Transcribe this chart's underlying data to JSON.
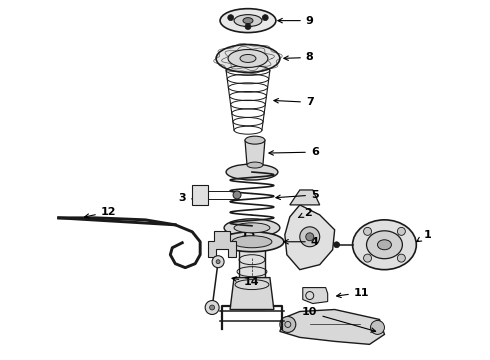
{
  "background_color": "#ffffff",
  "line_color": "#1a1a1a",
  "label_color": "#000000",
  "figsize": [
    4.9,
    3.6
  ],
  "dpi": 100,
  "xlim": [
    0,
    490
  ],
  "ylim": [
    0,
    360
  ]
}
